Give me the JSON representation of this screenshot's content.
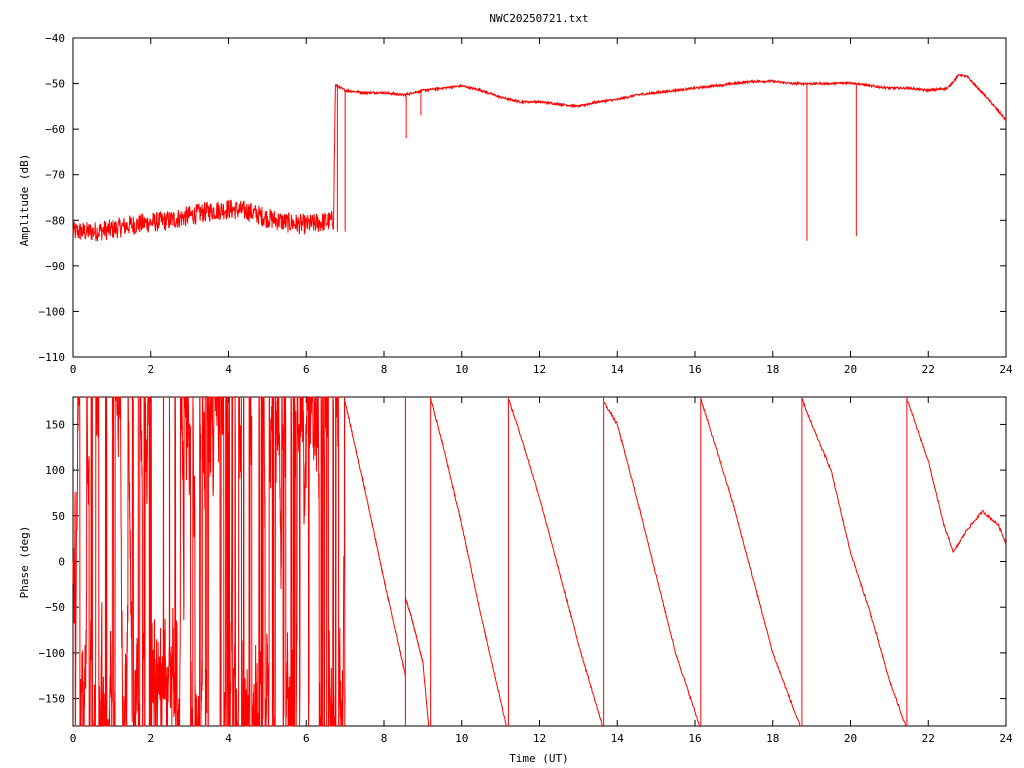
{
  "page": {
    "title": "NWC20250721.txt"
  },
  "colors": {
    "trace": "#ff0000",
    "axes": "#000000",
    "background": "#ffffff"
  },
  "chart_data": [
    {
      "type": "line",
      "title": "NWC20250721.txt",
      "xlabel": "",
      "ylabel": "Amplitude (dB)",
      "xlim": [
        0,
        24
      ],
      "ylim": [
        -110,
        -40
      ],
      "grid": false,
      "legend": "none",
      "x_ticks": [
        0,
        2,
        4,
        6,
        8,
        10,
        12,
        14,
        16,
        18,
        20,
        22,
        24
      ],
      "y_ticks": [
        -40,
        -50,
        -60,
        -70,
        -80,
        -90,
        -100,
        -110
      ],
      "y_tick_labels": [
        "−40",
        "−50",
        "−60",
        "−70",
        "−80",
        "−90",
        "−100",
        "−110"
      ],
      "series": [
        {
          "x": [
            0,
            0.5,
            1,
            1.5,
            2,
            2.5,
            3,
            3.5,
            4,
            4.5,
            5,
            5.5,
            6,
            6.7,
            6.75,
            7,
            7.5,
            8,
            8.5,
            9,
            9.5,
            10,
            10.5,
            11,
            11.5,
            12,
            12.5,
            13,
            13.5,
            14,
            14.5,
            15,
            15.5,
            16,
            16.5,
            17,
            17.5,
            18,
            18.5,
            19,
            19.5,
            20,
            20.5,
            21,
            21.5,
            22,
            22.5,
            22.8,
            23,
            23.5,
            24
          ],
          "y": [
            -82.5,
            -82.5,
            -82,
            -81,
            -80.5,
            -80,
            -79,
            -78,
            -77.5,
            -78,
            -79.5,
            -80.5,
            -81,
            -80,
            -50.3,
            -51.5,
            -52,
            -52,
            -52.5,
            -51.5,
            -51,
            -50.5,
            -51.5,
            -53,
            -54,
            -54,
            -54.5,
            -55,
            -54,
            -53.5,
            -52.5,
            -52,
            -51.5,
            -51,
            -50.5,
            -50,
            -49.5,
            -49.5,
            -50,
            -50,
            -50,
            -49.8,
            -50.5,
            -51,
            -51,
            -51.5,
            -51,
            -48,
            -48.5,
            -53,
            -58
          ]
        }
      ],
      "spikes": [
        {
          "x": 6.8,
          "y": -82.5
        },
        {
          "x": 7.0,
          "y": -82.5
        },
        {
          "x": 8.57,
          "y": -62
        },
        {
          "x": 8.95,
          "y": -57
        },
        {
          "x": 18.88,
          "y": -84.5
        },
        {
          "x": 20.15,
          "y": -83.5
        }
      ]
    },
    {
      "type": "line",
      "title": "",
      "xlabel": "Time (UT)",
      "ylabel": "Phase (deg)",
      "xlim": [
        0,
        24
      ],
      "ylim": [
        -180,
        180
      ],
      "grid": false,
      "legend": "none",
      "x_ticks": [
        0,
        2,
        4,
        6,
        8,
        10,
        12,
        14,
        16,
        18,
        20,
        22,
        24
      ],
      "y_ticks": [
        150,
        100,
        50,
        0,
        -50,
        -100,
        -150
      ],
      "y_tick_labels": [
        "150",
        "100",
        "50",
        "0",
        "−50",
        "−100",
        "−150"
      ],
      "series": [
        {
          "x": [
            7.0,
            7.5,
            8.0,
            8.5,
            8.55
          ],
          "y": [
            175,
            80,
            -20,
            -115,
            -125
          ]
        },
        {
          "x": [
            8.55,
            8.7,
            9.0,
            9.15
          ],
          "y": [
            -40,
            -60,
            -110,
            -180
          ]
        },
        {
          "x": [
            9.2,
            9.5,
            10.0,
            10.5,
            11.15
          ],
          "y": [
            178,
            130,
            40,
            -60,
            -180
          ]
        },
        {
          "x": [
            11.2,
            11.5,
            12.0,
            12.5,
            13.0,
            13.62
          ],
          "y": [
            178,
            140,
            70,
            -10,
            -90,
            -180
          ]
        },
        {
          "x": [
            13.65,
            14.0,
            14.5,
            15.0,
            15.5,
            16.12
          ],
          "y": [
            175,
            150,
            70,
            -15,
            -100,
            -180
          ]
        },
        {
          "x": [
            16.15,
            16.5,
            17.0,
            17.5,
            18.0,
            18.7
          ],
          "y": [
            178,
            130,
            60,
            -20,
            -100,
            -180
          ]
        },
        {
          "x": [
            18.75,
            19.0,
            19.5,
            20.0,
            20.5,
            21.0,
            21.42
          ],
          "y": [
            178,
            150,
            100,
            10,
            -55,
            -130,
            -180
          ]
        },
        {
          "x": [
            21.45,
            22.0,
            22.4,
            22.65,
            23.0,
            23.4,
            23.8,
            24.0
          ],
          "y": [
            178,
            110,
            40,
            10,
            35,
            55,
            40,
            20
          ]
        }
      ],
      "noise_region": {
        "x_range": [
          0,
          7.0
        ],
        "y_range": [
          -180,
          180
        ],
        "description": "dense fluctuating phase"
      }
    }
  ]
}
